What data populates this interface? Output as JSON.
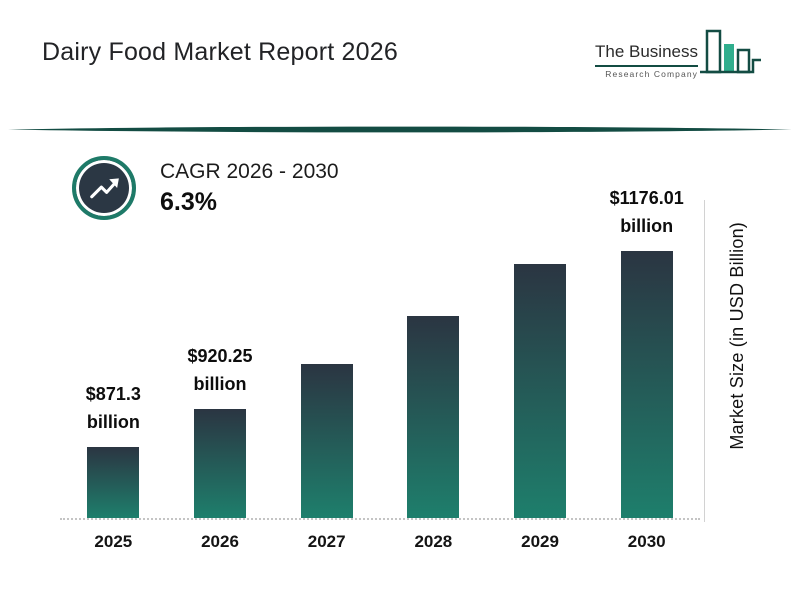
{
  "header": {
    "title": "Dairy Food Market Report 2026"
  },
  "logo": {
    "line1": "The Business",
    "line2": "Research Company"
  },
  "cagr": {
    "label": "CAGR 2026 - 2030",
    "value": "6.3%"
  },
  "chart_data": {
    "type": "bar",
    "title": "Dairy Food Market Report 2026",
    "categories": [
      "2025",
      "2026",
      "2027",
      "2028",
      "2029",
      "2030"
    ],
    "values": [
      871.3,
      920.25,
      978.2,
      1039.9,
      1105.4,
      1176.01
    ],
    "value_labels": [
      [
        "$871.3",
        "billion"
      ],
      [
        "$920.25",
        "billion"
      ],
      null,
      null,
      null,
      [
        "$1176.01",
        "billion"
      ]
    ],
    "xlabel": "",
    "ylabel": "Market Size (in USD Billion)",
    "ylim": [
      780,
      1210
    ],
    "grid": false,
    "legend": "none",
    "colors": {
      "bar_top": "#2b3542",
      "bar_bottom": "#1e7f6c",
      "accent": "#134c43"
    }
  }
}
